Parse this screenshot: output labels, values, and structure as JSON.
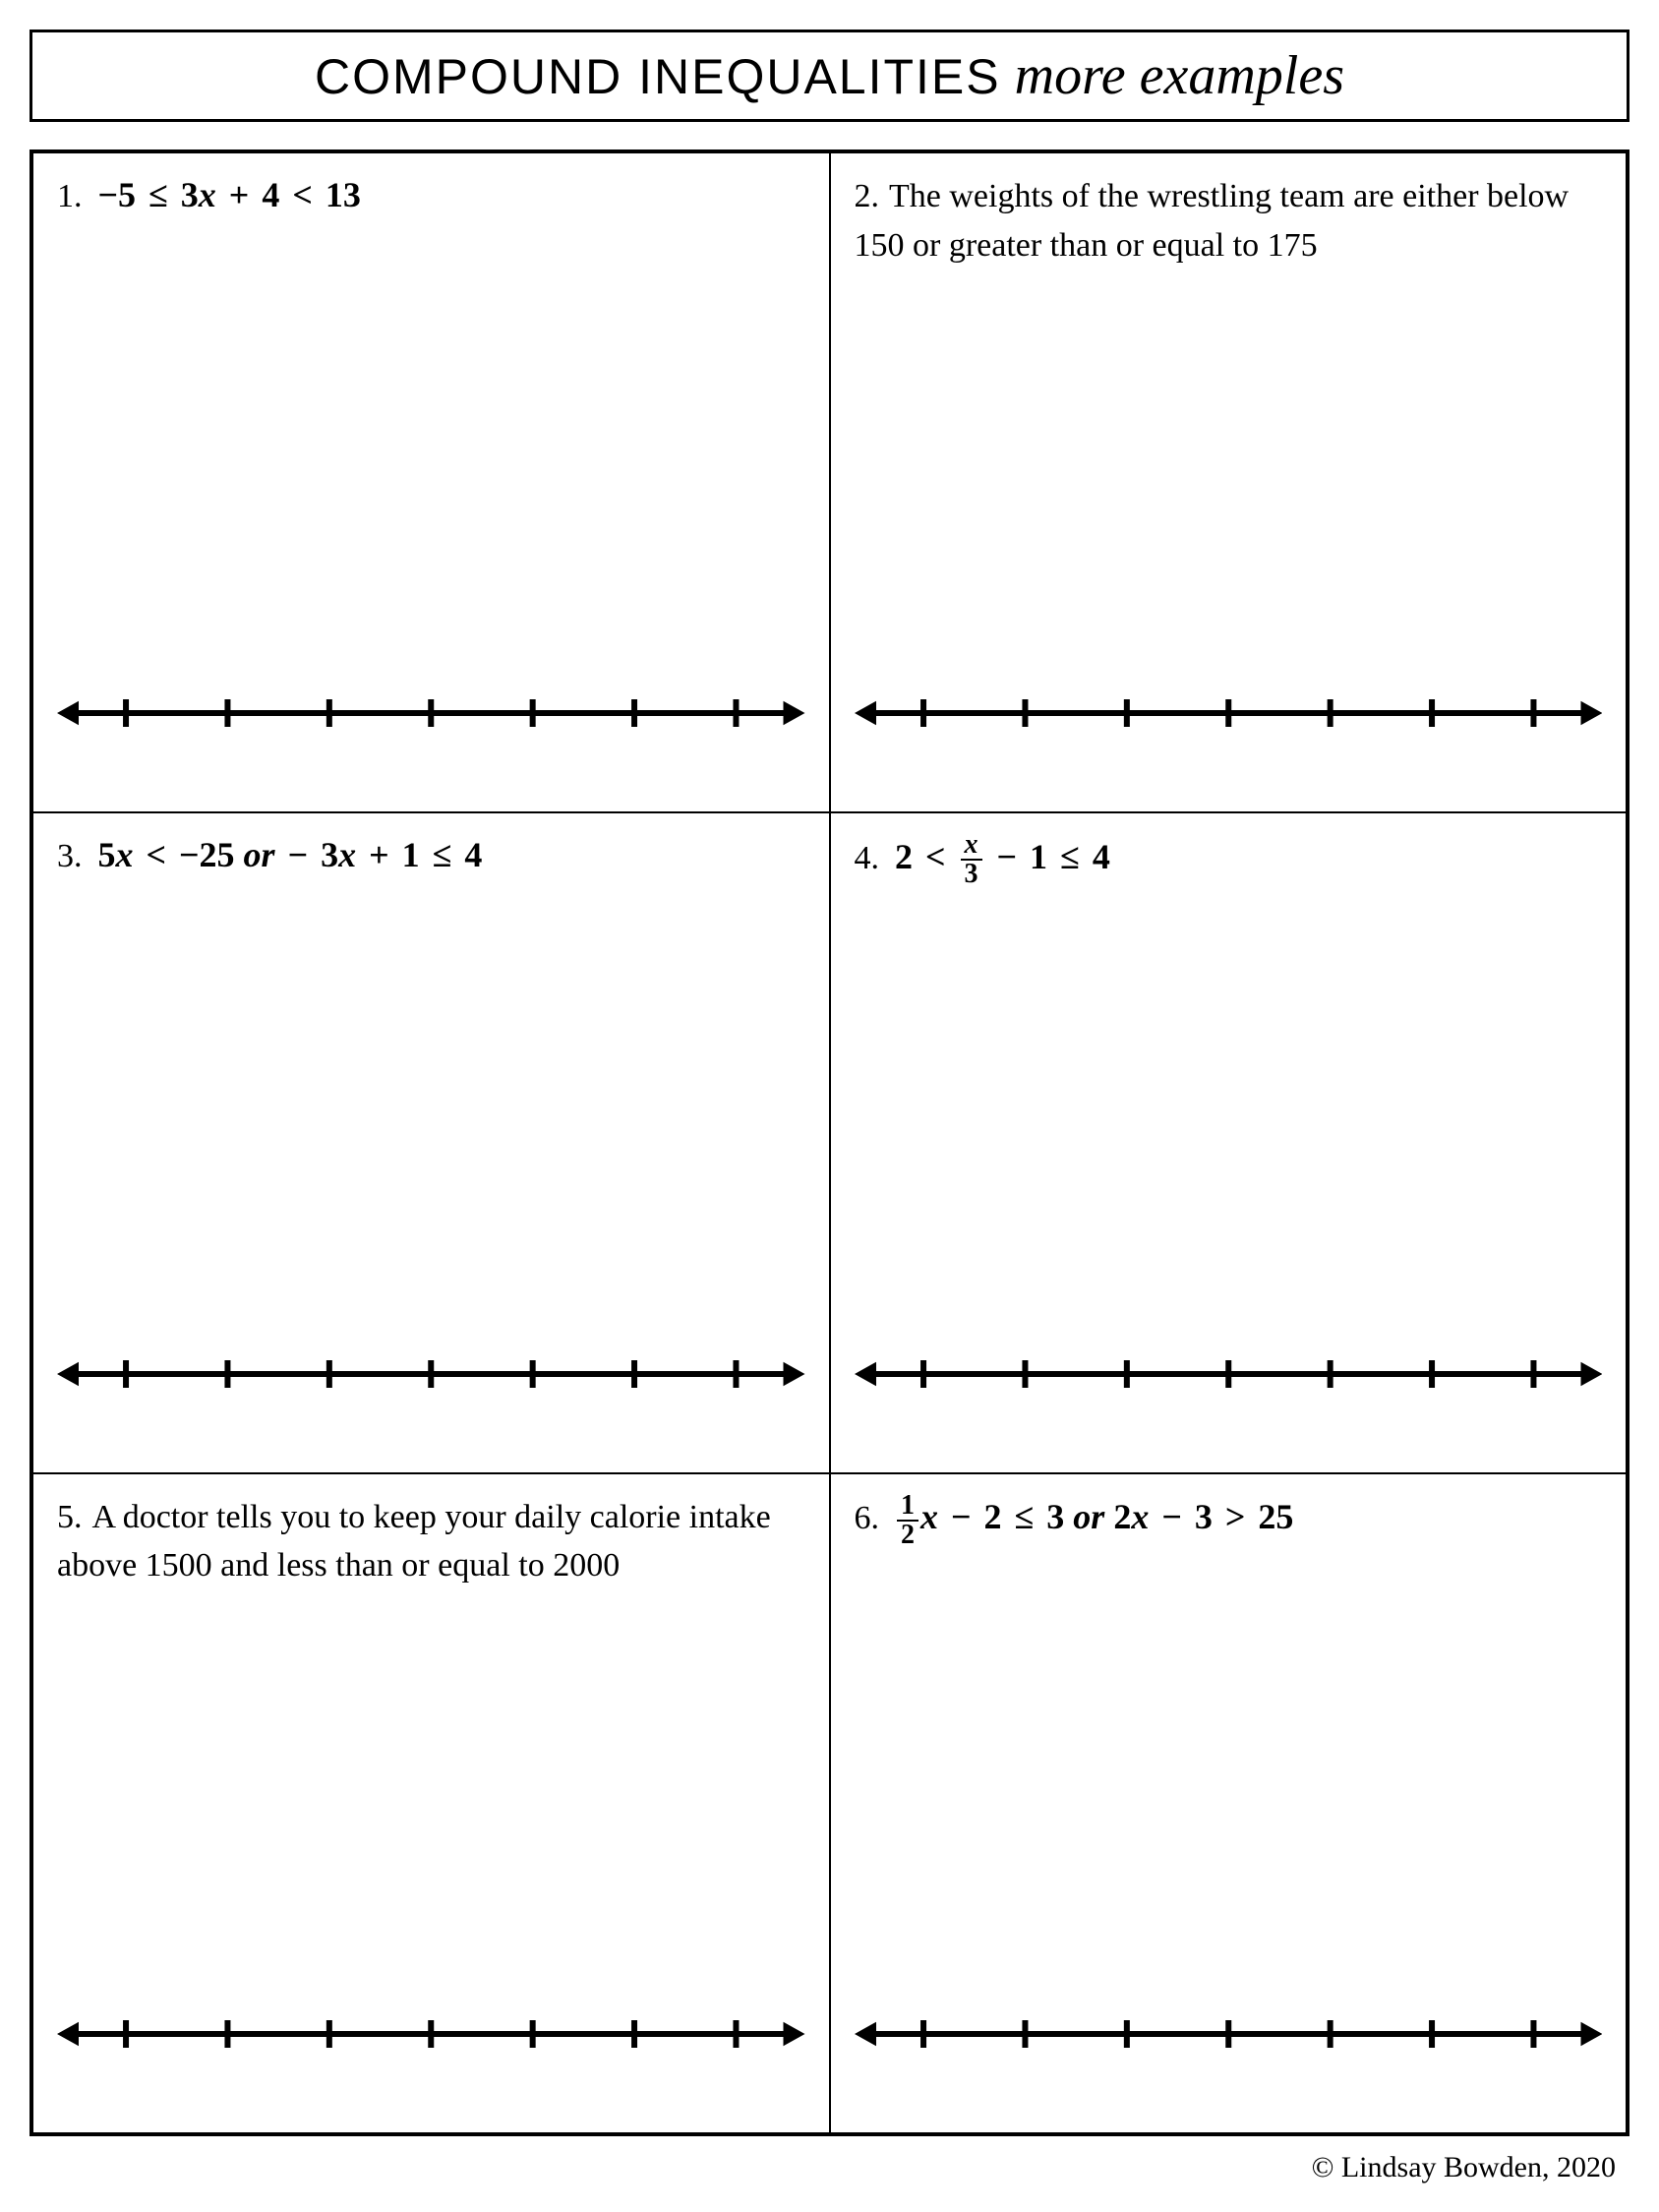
{
  "title": {
    "part1": "COMPOUND INEQUALITIES",
    "part2": "more examples"
  },
  "problems": [
    {
      "num": "1.",
      "type": "math",
      "html": "<span class='num'>−5</span> <span class='op'>≤</span> <span class='num'>3</span>x <span class='op'>+</span> <span class='num'>4</span> <span class='op'>&lt;</span> <span class='num'>13</span>"
    },
    {
      "num": "2.",
      "type": "word",
      "text": "The weights of the wrestling team are either below 150 or greater than or equal to 175"
    },
    {
      "num": "3.",
      "type": "math",
      "html": "<span class='num'>5</span>x <span class='op'>&lt;</span> <span class='num'>−25</span> <span style='font-style:italic'>or</span> <span class='op'>−</span> <span class='num'>3</span>x <span class='op'>+</span> <span class='num'>1</span> <span class='op'>≤</span> <span class='num'>4</span>"
    },
    {
      "num": "4.",
      "type": "math",
      "html": "<span class='num'>2</span> <span class='op'>&lt;</span> <span class='frac'><span class='top'>x</span><span class='bot num'>3</span></span> <span class='op'>−</span> <span class='num'>1</span> <span class='op'>≤</span> <span class='num'>4</span>"
    },
    {
      "num": "5.",
      "type": "word",
      "text": "A doctor tells you to keep your daily calorie intake above 1500 and less than or equal to 2000"
    },
    {
      "num": "6.",
      "type": "math",
      "html": "<span class='frac'><span class='top num'>1</span><span class='bot num'>2</span></span>x <span class='op'>−</span> <span class='num'>2</span> <span class='op'>≤</span> <span class='num'>3</span> <span style='font-style:italic'>or</span> <span class='num'>2</span>x <span class='op'>−</span> <span class='num'>3</span> <span class='op'>&gt;</span> <span class='num'>25</span>"
    }
  ],
  "numberline": {
    "tick_count": 7,
    "stroke_color": "#000000",
    "line_width": 6,
    "tick_height": 28,
    "arrow_size": 16
  },
  "copyright": "© Lindsay Bowden, 2020",
  "colors": {
    "border": "#000000",
    "background": "#ffffff",
    "text": "#000000"
  }
}
